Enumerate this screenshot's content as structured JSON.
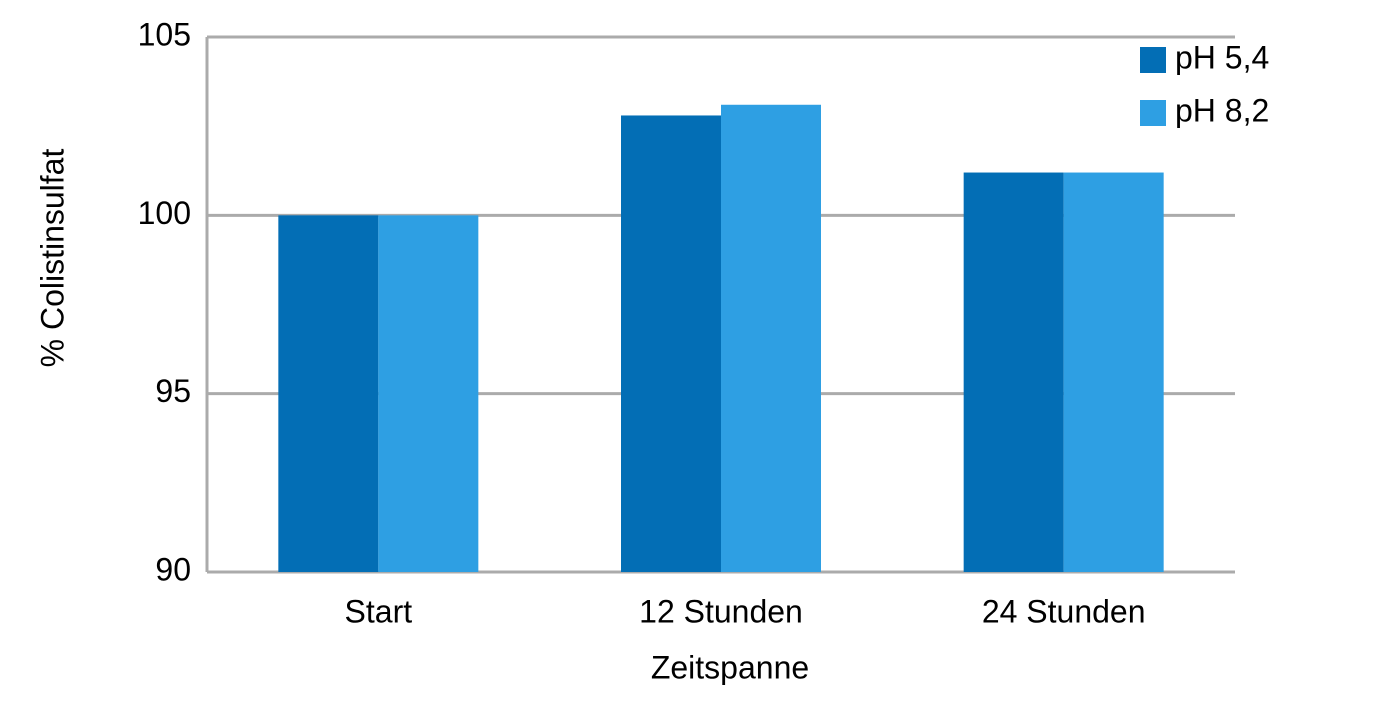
{
  "chart_data": {
    "type": "bar",
    "categories": [
      "Start",
      "12 Stunden",
      "24 Stunden"
    ],
    "series": [
      {
        "name": "pH 5,4",
        "color": "#036eb5",
        "values": [
          100,
          102.8,
          101.2
        ]
      },
      {
        "name": "pH 8,2",
        "color": "#2e9fe3",
        "values": [
          100,
          103.1,
          101.2
        ]
      }
    ],
    "ylim": [
      90,
      105
    ],
    "yticks": [
      90,
      95,
      100,
      105
    ],
    "grid": true,
    "ylabel": "% Colistinsulfat",
    "xlabel": "Zeitspanne",
    "legend": "top-right"
  }
}
